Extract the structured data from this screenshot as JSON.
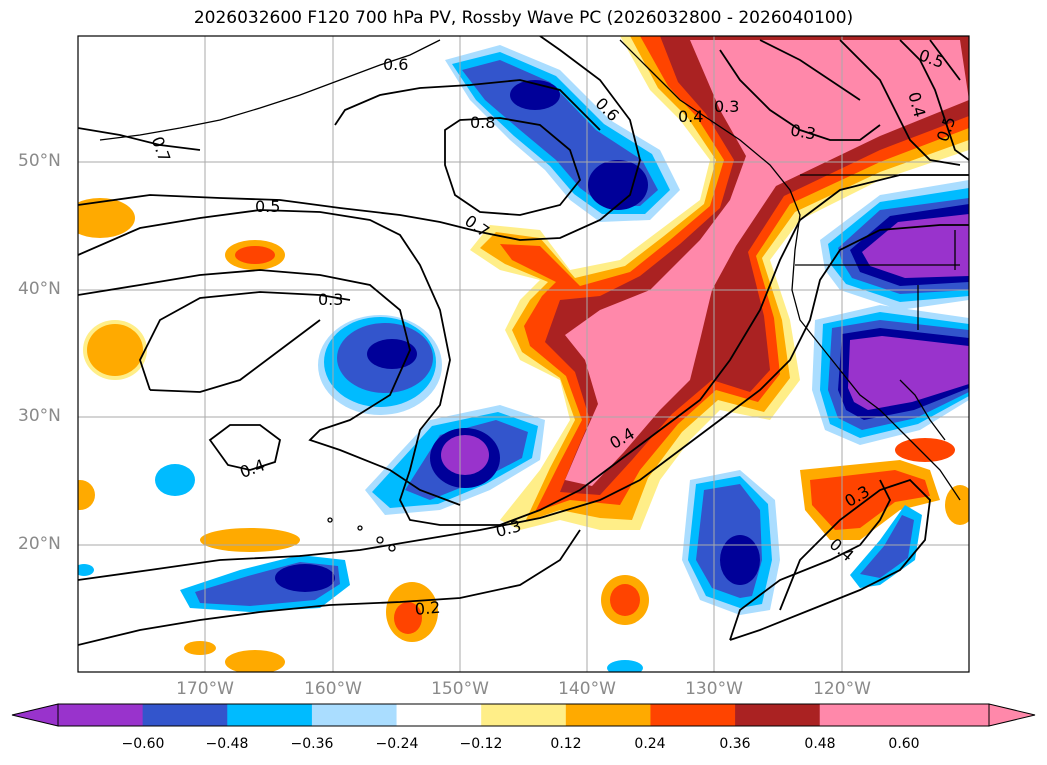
{
  "title": "2026032600 F120 700 hPa PV, Rossby Wave PC (2026032800 - 2026040100)",
  "map": {
    "lat_labels": [
      "50°N",
      "40°N",
      "30°N",
      "20°N"
    ],
    "lon_labels": [
      "170°W",
      "160°W",
      "150°W",
      "140°W",
      "130°W",
      "120°W"
    ],
    "contour_labels": [
      "0.6",
      "0.7",
      "0.8",
      "0.6",
      "0.7",
      "0.5",
      "0.3",
      "0.4",
      "0.4",
      "0.3",
      "0.2",
      "0.3",
      "0.4",
      "0.5",
      "0.4",
      "0.5",
      "0.3",
      "0.3",
      "0.4"
    ],
    "lon_range": [
      -180,
      -110
    ],
    "lat_range": [
      10,
      60
    ]
  },
  "colorbar": {
    "ticks": [
      "−0.60",
      "−0.48",
      "−0.36",
      "−0.24",
      "−0.12",
      "0.12",
      "0.24",
      "0.36",
      "0.48",
      "0.60"
    ],
    "colors": [
      "#9933cc",
      "#000099",
      "#3355cc",
      "#00bbff",
      "#aaddff",
      "#ffffff",
      "#ffee88",
      "#ffaa00",
      "#ff4400",
      "#aa2222",
      "#ff88aa",
      "#ff88aa"
    ]
  }
}
